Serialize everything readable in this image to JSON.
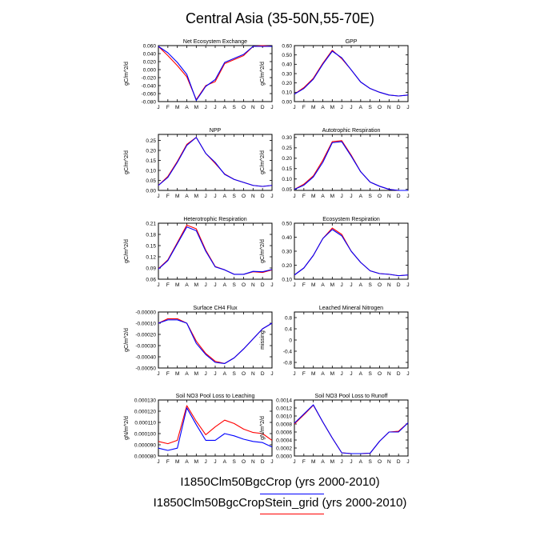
{
  "page_title": "Central Asia (35-50N,55-70E)",
  "colors": {
    "series1": "#0000ff",
    "series2": "#ff0000"
  },
  "legend": [
    {
      "label": "I1850Clm50BgcCrop (yrs 2000-2010)",
      "color": "#0000ff"
    },
    {
      "label": "I1850Clm50BgcCropStein_grid (yrs 2000-2010)",
      "color": "#ff0000"
    }
  ],
  "chart_data": [
    {
      "type": "line",
      "title": "Net Ecosystem Exchange",
      "ylabel": "gC/m^2/d",
      "categories": [
        "J",
        "F",
        "M",
        "A",
        "M",
        "J",
        "J",
        "A",
        "S",
        "O",
        "N",
        "D",
        "J"
      ],
      "ylim": [
        -0.08,
        0.06
      ],
      "yticks": [
        "0.060",
        "0.040",
        "0.020",
        "0.000",
        "-0.020",
        "-0.040",
        "-0.060",
        "-0.080"
      ],
      "series": [
        {
          "values": [
            0.058,
            0.042,
            0.018,
            -0.012,
            -0.077,
            -0.042,
            -0.025,
            0.018,
            0.028,
            0.038,
            0.058,
            0.058,
            0.058
          ]
        },
        {
          "values": [
            0.058,
            0.035,
            0.01,
            -0.018,
            -0.075,
            -0.04,
            -0.03,
            0.015,
            0.025,
            0.035,
            0.058,
            0.06,
            0.058
          ]
        }
      ]
    },
    {
      "type": "line",
      "title": "GPP",
      "ylabel": "gC/m^2/d",
      "categories": [
        "J",
        "F",
        "M",
        "A",
        "M",
        "J",
        "J",
        "A",
        "S",
        "O",
        "N",
        "D",
        "J"
      ],
      "ylim": [
        0.0,
        0.6
      ],
      "yticks": [
        "0.60",
        "0.50",
        "0.40",
        "0.30",
        "0.20",
        "0.10",
        "0.00"
      ],
      "series": [
        {
          "values": [
            0.08,
            0.14,
            0.24,
            0.4,
            0.54,
            0.47,
            0.34,
            0.21,
            0.14,
            0.1,
            0.07,
            0.06,
            0.07
          ]
        },
        {
          "values": [
            0.08,
            0.15,
            0.25,
            0.41,
            0.55,
            0.46,
            0.34,
            0.21,
            0.14,
            0.1,
            0.07,
            0.06,
            0.07
          ]
        }
      ]
    },
    {
      "type": "line",
      "title": "NPP",
      "ylabel": "gC/m^2/d",
      "categories": [
        "J",
        "F",
        "M",
        "A",
        "M",
        "J",
        "J",
        "A",
        "S",
        "O",
        "N",
        "D",
        "J"
      ],
      "ylim": [
        0.0,
        0.28
      ],
      "yticks": [
        "0.25",
        "0.20",
        "0.15",
        "0.10",
        "0.05",
        "0.00"
      ],
      "series": [
        {
          "values": [
            0.025,
            0.065,
            0.14,
            0.225,
            0.265,
            0.185,
            0.14,
            0.08,
            0.055,
            0.04,
            0.025,
            0.02,
            0.025
          ]
        },
        {
          "values": [
            0.025,
            0.07,
            0.145,
            0.23,
            0.265,
            0.185,
            0.135,
            0.082,
            0.055,
            0.04,
            0.025,
            0.02,
            0.025
          ]
        }
      ]
    },
    {
      "type": "line",
      "title": "Autotrophic Respiration",
      "ylabel": "gC/m^2/d",
      "categories": [
        "J",
        "F",
        "M",
        "A",
        "M",
        "J",
        "J",
        "A",
        "S",
        "O",
        "N",
        "D",
        "J"
      ],
      "ylim": [
        0.045,
        0.315
      ],
      "yticks": [
        "0.30",
        "0.25",
        "0.20",
        "0.15",
        "0.10",
        "0.05"
      ],
      "series": [
        {
          "values": [
            0.05,
            0.07,
            0.11,
            0.18,
            0.275,
            0.28,
            0.21,
            0.135,
            0.085,
            0.065,
            0.05,
            0.045,
            0.045
          ]
        },
        {
          "values": [
            0.05,
            0.075,
            0.115,
            0.19,
            0.28,
            0.285,
            0.215,
            0.135,
            0.085,
            0.065,
            0.05,
            0.045,
            0.045
          ]
        }
      ]
    },
    {
      "type": "line",
      "title": "Heterotrophic Respiration",
      "ylabel": "gC/m^2/d",
      "categories": [
        "J",
        "F",
        "M",
        "A",
        "M",
        "J",
        "J",
        "A",
        "S",
        "O",
        "N",
        "D",
        "J"
      ],
      "ylim": [
        0.06,
        0.21
      ],
      "yticks": [
        "0.21",
        "0.18",
        "0.15",
        "0.12",
        "0.09",
        "0.06"
      ],
      "series": [
        {
          "values": [
            0.087,
            0.11,
            0.155,
            0.2,
            0.19,
            0.135,
            0.093,
            0.085,
            0.073,
            0.073,
            0.081,
            0.08,
            0.086
          ]
        },
        {
          "values": [
            0.088,
            0.112,
            0.158,
            0.205,
            0.195,
            0.138,
            0.094,
            0.085,
            0.073,
            0.073,
            0.08,
            0.078,
            0.085
          ]
        }
      ]
    },
    {
      "type": "line",
      "title": "Ecosystem Respiration",
      "ylabel": "gC/m^2/d",
      "categories": [
        "J",
        "F",
        "M",
        "A",
        "M",
        "J",
        "J",
        "A",
        "S",
        "O",
        "N",
        "D",
        "J"
      ],
      "ylim": [
        0.1,
        0.5
      ],
      "yticks": [
        "0.50",
        "0.40",
        "0.30",
        "0.20",
        "0.10"
      ],
      "series": [
        {
          "values": [
            0.13,
            0.18,
            0.27,
            0.39,
            0.455,
            0.41,
            0.3,
            0.22,
            0.16,
            0.14,
            0.135,
            0.125,
            0.13
          ]
        },
        {
          "values": [
            0.13,
            0.18,
            0.27,
            0.39,
            0.465,
            0.42,
            0.3,
            0.22,
            0.16,
            0.14,
            0.135,
            0.125,
            0.13
          ]
        }
      ]
    },
    {
      "type": "line",
      "title": "Surface CH4 Flux",
      "ylabel": "gC/m^2/d",
      "categories": [
        "J",
        "F",
        "M",
        "A",
        "M",
        "J",
        "J",
        "A",
        "S",
        "O",
        "N",
        "D",
        "J"
      ],
      "ylim": [
        -0.0005,
        0.0
      ],
      "yticks": [
        "-0.00000",
        "-0.00010",
        "-0.00020",
        "-0.00030",
        "-0.00040",
        "-0.00050"
      ],
      "series": [
        {
          "values": [
            -0.0001,
            -7e-05,
            -7e-05,
            -0.0001,
            -0.00028,
            -0.00038,
            -0.00045,
            -0.00046,
            -0.00041,
            -0.00033,
            -0.00024,
            -0.00015,
            -0.0001
          ]
        },
        {
          "values": [
            -0.0001,
            -6e-05,
            -6e-05,
            -0.0001,
            -0.00026,
            -0.00037,
            -0.00044,
            -0.00046,
            -0.00041,
            -0.00033,
            -0.00024,
            -0.00015,
            -0.0001
          ]
        }
      ]
    },
    {
      "type": "line",
      "title": "Leached Mineral Nitrogen",
      "ylabel": "missing",
      "categories": [
        "J",
        "F",
        "M",
        "A",
        "M",
        "J",
        "J",
        "A",
        "S",
        "O",
        "N",
        "D",
        "J"
      ],
      "ylim": [
        -1.0,
        1.0
      ],
      "yticks": [
        "0.8",
        "0.4",
        "0",
        "-0.4",
        "-0.8"
      ],
      "series": []
    },
    {
      "type": "line",
      "title": "Soil NO3 Pool Loss to Leaching",
      "ylabel": "gN/m^2/d",
      "categories": [
        "J",
        "F",
        "M",
        "A",
        "M",
        "J",
        "J",
        "A",
        "S",
        "O",
        "N",
        "D",
        "J"
      ],
      "ylim": [
        8e-05,
        0.00013
      ],
      "yticks": [
        "0.000130",
        "0.000120",
        "0.000110",
        "0.000100",
        "0.000090",
        "0.000080"
      ],
      "series": [
        {
          "values": [
            8.7e-05,
            8.5e-05,
            8.7e-05,
            0.000123,
            0.000108,
            9.4e-05,
            9.4e-05,
            0.0001,
            9.8e-05,
            9.5e-05,
            9.3e-05,
            9.2e-05,
            8.8e-05
          ]
        },
        {
          "values": [
            9.3e-05,
            9.1e-05,
            9.4e-05,
            0.000125,
            0.000111,
            9.9e-05,
            0.000106,
            0.000112,
            0.000109,
            0.000104,
            0.000101,
            0.0001,
            9.4e-05
          ]
        }
      ]
    },
    {
      "type": "line",
      "title": "Soil NO3 Pool Loss to Runoff",
      "ylabel": "gN/m^2/d",
      "categories": [
        "J",
        "F",
        "M",
        "A",
        "M",
        "J",
        "J",
        "A",
        "S",
        "O",
        "N",
        "D",
        "J"
      ],
      "ylim": [
        0.0,
        0.0014
      ],
      "yticks": [
        "0.0014",
        "0.0012",
        "0.0010",
        "0.0008",
        "0.0006",
        "0.0004",
        "0.0002",
        "0.0000"
      ],
      "series": [
        {
          "values": [
            0.00082,
            0.00105,
            0.00128,
            0.00085,
            0.00045,
            8e-05,
            6e-05,
            6e-05,
            7e-05,
            0.00037,
            0.0006,
            0.0006,
            0.00083
          ]
        },
        {
          "values": [
            0.0008,
            0.00103,
            0.00127,
            0.00085,
            0.00045,
            8e-05,
            6e-05,
            6e-05,
            7e-05,
            0.00037,
            0.0006,
            0.00062,
            0.00083
          ]
        }
      ]
    }
  ]
}
